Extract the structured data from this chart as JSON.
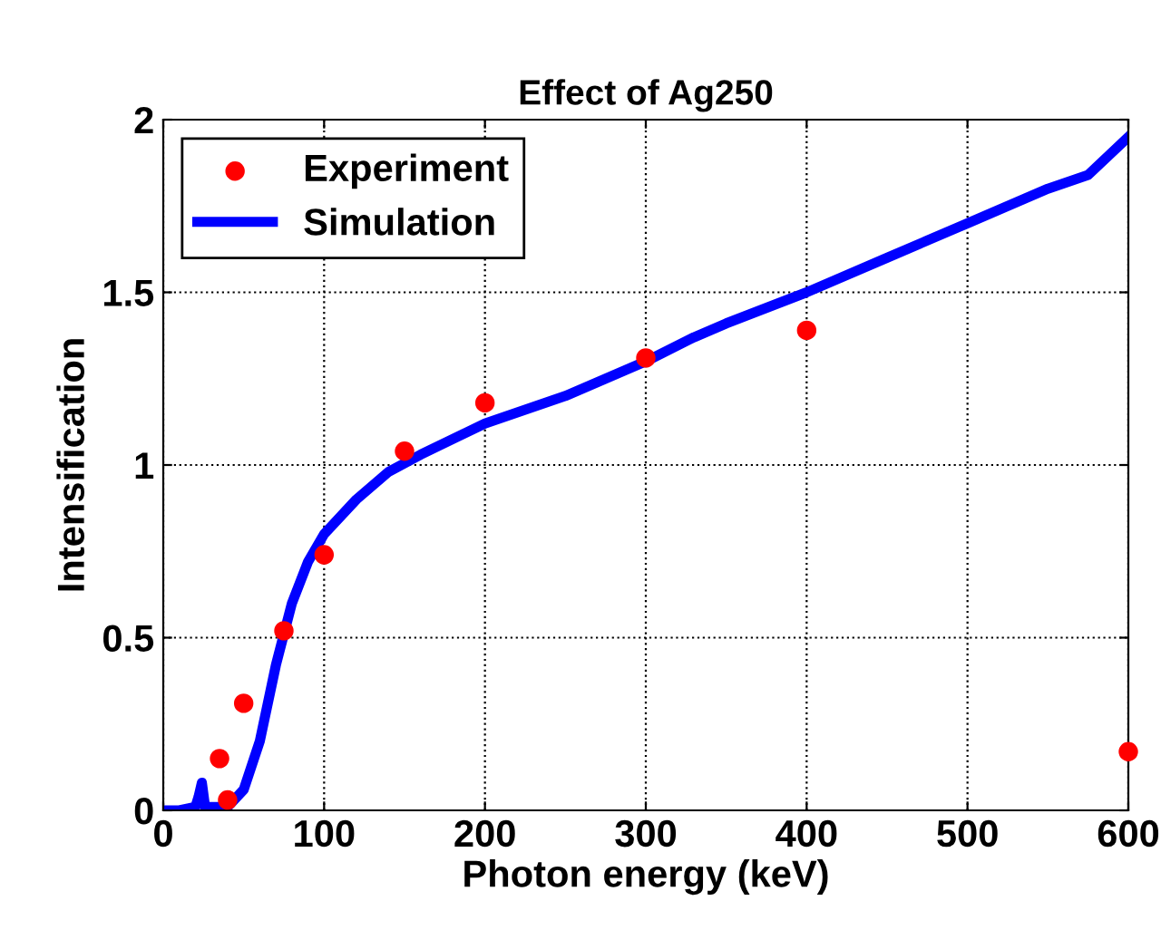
{
  "chart_data": {
    "type": "line",
    "title": "Effect of Ag250",
    "xlabel": "Photon energy (keV)",
    "ylabel": "Intensification",
    "xlim": [
      0,
      600
    ],
    "xticks": [
      0,
      100,
      200,
      300,
      400,
      500,
      600
    ],
    "ylim": [
      0,
      2
    ],
    "yticks": [
      0,
      0.5,
      1,
      1.5,
      2
    ],
    "grid": true,
    "legend": "top left",
    "series": [
      {
        "name": "Experiment",
        "type": "scatter",
        "marker": "circle",
        "color": "#ff0000",
        "x": [
          35,
          40,
          50,
          75,
          100,
          150,
          200,
          300,
          400,
          600
        ],
        "values": [
          0.15,
          0.03,
          0.31,
          0.52,
          0.74,
          1.04,
          1.18,
          1.31,
          1.39,
          0.17
        ]
      },
      {
        "name": "Simulation",
        "color": "#0000ff",
        "x": [
          0,
          10,
          20,
          22,
          24,
          26,
          30,
          40,
          50,
          60,
          70,
          80,
          90,
          100,
          120,
          140,
          160,
          200,
          250,
          300,
          330,
          350,
          400,
          450,
          500,
          550,
          575,
          600
        ],
        "values": [
          0,
          0,
          0.01,
          0.04,
          0.08,
          0.01,
          0.01,
          0.01,
          0.06,
          0.2,
          0.42,
          0.6,
          0.72,
          0.8,
          0.9,
          0.98,
          1.03,
          1.12,
          1.2,
          1.3,
          1.37,
          1.41,
          1.5,
          1.6,
          1.7,
          1.8,
          1.84,
          1.95
        ]
      }
    ]
  }
}
